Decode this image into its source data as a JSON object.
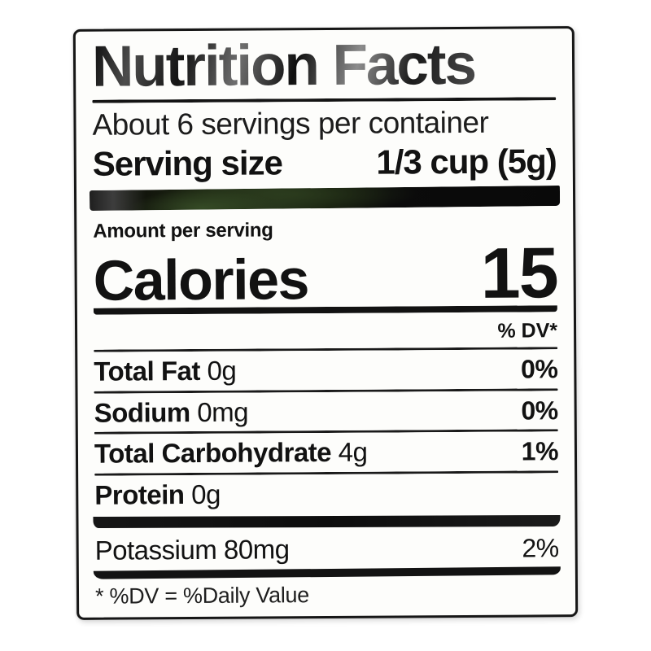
{
  "label": {
    "title": "Nutrition Facts",
    "servings_per_container": "About 6 servings per container",
    "serving_size": {
      "label": "Serving size",
      "value": "1/3 cup (5g)"
    },
    "amount_per_serving": "Amount per serving",
    "calories": {
      "label": "Calories",
      "value": "15"
    },
    "dv_header": "% DV*",
    "nutrients": [
      {
        "name": "Total Fat",
        "amount": "0g",
        "dv": "0%"
      },
      {
        "name": "Sodium",
        "amount": "0mg",
        "dv": "0%"
      },
      {
        "name": "Total Carbohydrate",
        "amount": "4g",
        "dv": "1%"
      },
      {
        "name": "Protein",
        "amount": "0g",
        "dv": ""
      },
      {
        "name": "Potassium",
        "amount": "80mg",
        "dv": "2%"
      }
    ],
    "footnote": "* %DV = %Daily Value",
    "colors": {
      "ink": "#121212",
      "label_background": "#fdfdfb",
      "page_background": "#ffffff",
      "window_bar_green": "#24311a"
    }
  }
}
